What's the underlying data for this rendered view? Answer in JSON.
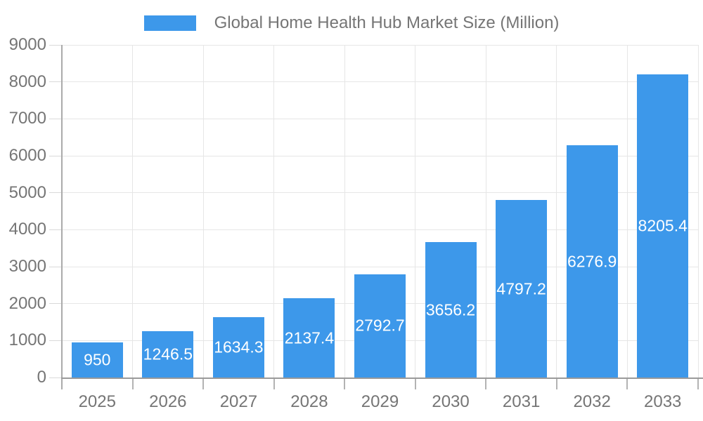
{
  "legend": {
    "label": "Global Home Health Hub Market Size (Million)"
  },
  "chart_data": {
    "type": "bar",
    "title": "Global Home Health Hub Market Size (Million)",
    "categories": [
      "2025",
      "2026",
      "2027",
      "2028",
      "2029",
      "2030",
      "2031",
      "2032",
      "2033"
    ],
    "values": [
      950,
      1246.5,
      1634.3,
      2137.4,
      2792.7,
      3656.2,
      4797.2,
      6276.9,
      8205.4
    ],
    "value_labels": [
      "950",
      "1246.5",
      "1634.3",
      "2137.4",
      "2792.7",
      "3656.2",
      "4797.2",
      "6276.9",
      "8205.4"
    ],
    "xlabel": "",
    "ylabel": "",
    "ylim": [
      0,
      9000
    ],
    "ytick_interval": 1000,
    "ytick_labels": [
      "0",
      "1000",
      "2000",
      "3000",
      "4000",
      "5000",
      "6000",
      "7000",
      "8000",
      "9000"
    ],
    "grid": true,
    "legend_position": "top-center",
    "colors": {
      "bar": "#3d98ea",
      "grid": "#e6e6e6",
      "tick": "#d9d9d9",
      "axis_x": "#9a9a9a",
      "axis_y": "#ababab",
      "below_tick": "#b3b3b3",
      "axis_label": "#757575",
      "value_label": "#ffffff",
      "background": "#ffffff"
    }
  }
}
